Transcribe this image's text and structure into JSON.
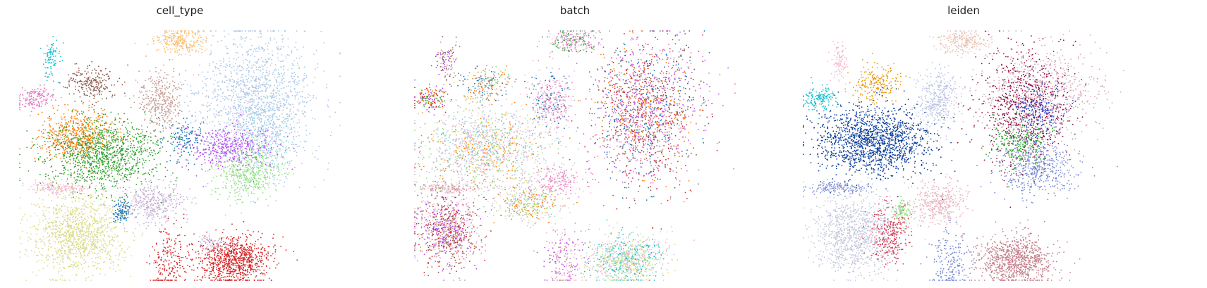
{
  "chart_data": [
    {
      "type": "scatter",
      "title": "cell_type",
      "xlabel": "",
      "ylabel": "",
      "axes_visible": false,
      "grid": false,
      "legend": false,
      "groups": [
        {
          "color": "#fdbf6f",
          "cx": 0.5,
          "cy": 0.04,
          "sx": 0.04,
          "sy": 0.025,
          "n": 260
        },
        {
          "color": "#17becf",
          "cx": 0.1,
          "cy": 0.12,
          "sx": 0.012,
          "sy": 0.04,
          "n": 90
        },
        {
          "color": "#8c564b",
          "cx": 0.22,
          "cy": 0.21,
          "sx": 0.04,
          "sy": 0.035,
          "n": 220
        },
        {
          "color": "#e377c2",
          "cx": 0.05,
          "cy": 0.27,
          "sx": 0.03,
          "sy": 0.025,
          "n": 150
        },
        {
          "color": "#c49c94",
          "cx": 0.44,
          "cy": 0.28,
          "sx": 0.035,
          "sy": 0.06,
          "n": 380
        },
        {
          "color": "#aec7e8",
          "cx": 0.74,
          "cy": 0.28,
          "sx": 0.09,
          "sy": 0.14,
          "n": 1500
        },
        {
          "color": "#9edae5",
          "cx": 0.77,
          "cy": 0.42,
          "sx": 0.05,
          "sy": 0.08,
          "n": 300
        },
        {
          "color": "#ff7f0e",
          "cx": 0.18,
          "cy": 0.42,
          "sx": 0.06,
          "sy": 0.05,
          "n": 600
        },
        {
          "color": "#2ca02c",
          "cx": 0.26,
          "cy": 0.5,
          "sx": 0.09,
          "sy": 0.07,
          "n": 1100
        },
        {
          "color": "#b44ef5",
          "cx": 0.65,
          "cy": 0.47,
          "sx": 0.07,
          "sy": 0.04,
          "n": 450
        },
        {
          "color": "#98df8a",
          "cx": 0.71,
          "cy": 0.57,
          "sx": 0.05,
          "sy": 0.05,
          "n": 450
        },
        {
          "color": "#1f77b4",
          "cx": 0.52,
          "cy": 0.44,
          "sx": 0.03,
          "sy": 0.04,
          "n": 140
        },
        {
          "color": "#1f77b4",
          "cx": 0.32,
          "cy": 0.72,
          "sx": 0.015,
          "sy": 0.025,
          "n": 120
        },
        {
          "color": "#c5b0d5",
          "cx": 0.42,
          "cy": 0.69,
          "sx": 0.045,
          "sy": 0.04,
          "n": 380
        },
        {
          "color": "#f7b6d2",
          "cx": 0.12,
          "cy": 0.63,
          "sx": 0.05,
          "sy": 0.012,
          "n": 170
        },
        {
          "color": "#dbdb8d",
          "cx": 0.18,
          "cy": 0.81,
          "sx": 0.07,
          "sy": 0.08,
          "n": 1200
        },
        {
          "color": "#d62728",
          "cx": 0.67,
          "cy": 0.92,
          "sx": 0.06,
          "sy": 0.05,
          "n": 900
        },
        {
          "color": "#d62728",
          "cx": 0.47,
          "cy": 0.92,
          "sx": 0.03,
          "sy": 0.07,
          "n": 200
        },
        {
          "color": "#c5b0d5",
          "cx": 0.6,
          "cy": 0.85,
          "sx": 0.025,
          "sy": 0.015,
          "n": 60
        }
      ]
    },
    {
      "type": "scatter",
      "title": "batch",
      "xlabel": "",
      "ylabel": "",
      "axes_visible": false,
      "grid": false,
      "legend": false,
      "groups": [
        {
          "colors": [
            "#f7b6d2",
            "#e377c2",
            "#2ca02c",
            "#c5b0d5"
          ],
          "cx": 0.49,
          "cy": 0.04,
          "sx": 0.04,
          "sy": 0.025,
          "n": 260
        },
        {
          "colors": [
            "#b44ef5",
            "#c49c94",
            "#8c564b"
          ],
          "cx": 0.1,
          "cy": 0.12,
          "sx": 0.015,
          "sy": 0.04,
          "n": 100
        },
        {
          "colors": [
            "#98df8a",
            "#c49c94",
            "#1f77b4",
            "#ff7f0e"
          ],
          "cx": 0.22,
          "cy": 0.21,
          "sx": 0.04,
          "sy": 0.035,
          "n": 220
        },
        {
          "colors": [
            "#b44ef5",
            "#d62728",
            "#2ca02c",
            "#ff7f0e"
          ],
          "cx": 0.05,
          "cy": 0.27,
          "sx": 0.03,
          "sy": 0.025,
          "n": 160
        },
        {
          "colors": [
            "#f7b6d2",
            "#e377c2",
            "#1f77b4",
            "#c5b0d5"
          ],
          "cx": 0.42,
          "cy": 0.28,
          "sx": 0.035,
          "sy": 0.06,
          "n": 380
        },
        {
          "colors": [
            "#8c564b",
            "#d62728",
            "#b44ef5",
            "#ff7f0e",
            "#1f77b4",
            "#e377c2"
          ],
          "cx": 0.72,
          "cy": 0.32,
          "sx": 0.08,
          "sy": 0.14,
          "n": 1700
        },
        {
          "colors": [
            "#98df8a",
            "#c5b0d5",
            "#9edae5",
            "#ff7f0e",
            "#aec7e8",
            "#f7b6d2",
            "#dbdb8d"
          ],
          "cx": 0.22,
          "cy": 0.47,
          "sx": 0.1,
          "sy": 0.08,
          "n": 1400
        },
        {
          "colors": [
            "#ff7f0e",
            "#98df8a",
            "#c5b0d5",
            "#dbdb8d"
          ],
          "cx": 0.35,
          "cy": 0.69,
          "sx": 0.05,
          "sy": 0.04,
          "n": 380
        },
        {
          "colors": [
            "#f7b6d2",
            "#e377c2"
          ],
          "cx": 0.45,
          "cy": 0.6,
          "sx": 0.04,
          "sy": 0.03,
          "n": 200
        },
        {
          "colors": [
            "#8c564b",
            "#d62728",
            "#b44ef5",
            "#c49c94",
            "#f7b6d2"
          ],
          "cx": 0.1,
          "cy": 0.8,
          "sx": 0.05,
          "sy": 0.07,
          "n": 900
        },
        {
          "colors": [
            "#f7b6d2",
            "#c49c94"
          ],
          "cx": 0.1,
          "cy": 0.63,
          "sx": 0.05,
          "sy": 0.012,
          "n": 170
        },
        {
          "colors": [
            "#17becf",
            "#98df8a",
            "#dbdb8d",
            "#9edae5",
            "#f7b6d2"
          ],
          "cx": 0.66,
          "cy": 0.92,
          "sx": 0.06,
          "sy": 0.05,
          "n": 900
        },
        {
          "colors": [
            "#e377c2",
            "#c49c94",
            "#b44ef5",
            "#f7b6d2"
          ],
          "cx": 0.47,
          "cy": 0.92,
          "sx": 0.03,
          "sy": 0.07,
          "n": 200
        }
      ]
    },
    {
      "type": "scatter",
      "title": "leiden",
      "xlabel": "",
      "ylabel": "",
      "axes_visible": false,
      "grid": false,
      "legend": false,
      "groups": [
        {
          "color": "#e8c4b8",
          "cx": 0.5,
          "cy": 0.04,
          "sx": 0.04,
          "sy": 0.025,
          "n": 260
        },
        {
          "color": "#17becf",
          "cx": 0.05,
          "cy": 0.27,
          "sx": 0.025,
          "sy": 0.025,
          "n": 150
        },
        {
          "color": "#f7b6d2",
          "cx": 0.11,
          "cy": 0.12,
          "sx": 0.012,
          "sy": 0.04,
          "n": 90
        },
        {
          "color": "#e89c0e",
          "cx": 0.22,
          "cy": 0.21,
          "sx": 0.04,
          "sy": 0.035,
          "n": 220
        },
        {
          "color": "#bcc3e6",
          "cx": 0.42,
          "cy": 0.28,
          "sx": 0.035,
          "sy": 0.06,
          "n": 380
        },
        {
          "color": "#d9a8b8",
          "cx": 0.75,
          "cy": 0.25,
          "sx": 0.09,
          "sy": 0.1,
          "n": 700
        },
        {
          "color": "#8b0a3c",
          "cx": 0.69,
          "cy": 0.3,
          "sx": 0.07,
          "sy": 0.12,
          "n": 700
        },
        {
          "color": "#3b56d6",
          "cx": 0.74,
          "cy": 0.32,
          "sx": 0.04,
          "sy": 0.06,
          "n": 250
        },
        {
          "color": "#7a8bd6",
          "cx": 0.73,
          "cy": 0.55,
          "sx": 0.06,
          "sy": 0.06,
          "n": 500
        },
        {
          "color": "#2ca02c",
          "cx": 0.68,
          "cy": 0.45,
          "sx": 0.05,
          "sy": 0.05,
          "n": 250
        },
        {
          "color": "#0d3f9e",
          "cx": 0.22,
          "cy": 0.44,
          "sx": 0.09,
          "sy": 0.07,
          "n": 1500
        },
        {
          "color": "#98df8a",
          "cx": 0.31,
          "cy": 0.72,
          "sx": 0.015,
          "sy": 0.025,
          "n": 120
        },
        {
          "color": "#e8b3c0",
          "cx": 0.42,
          "cy": 0.69,
          "sx": 0.045,
          "sy": 0.04,
          "n": 380
        },
        {
          "color": "#8894d6",
          "cx": 0.1,
          "cy": 0.63,
          "sx": 0.05,
          "sy": 0.012,
          "n": 170
        },
        {
          "color": "#c5c7dd",
          "cx": 0.16,
          "cy": 0.81,
          "sx": 0.06,
          "sy": 0.08,
          "n": 1000
        },
        {
          "color": "#d6455f",
          "cx": 0.27,
          "cy": 0.82,
          "sx": 0.03,
          "sy": 0.06,
          "n": 300
        },
        {
          "color": "#c4808c",
          "cx": 0.66,
          "cy": 0.92,
          "sx": 0.06,
          "sy": 0.05,
          "n": 900
        },
        {
          "color": "#7a8bd6",
          "cx": 0.46,
          "cy": 0.92,
          "sx": 0.03,
          "sy": 0.07,
          "n": 200
        }
      ]
    }
  ]
}
